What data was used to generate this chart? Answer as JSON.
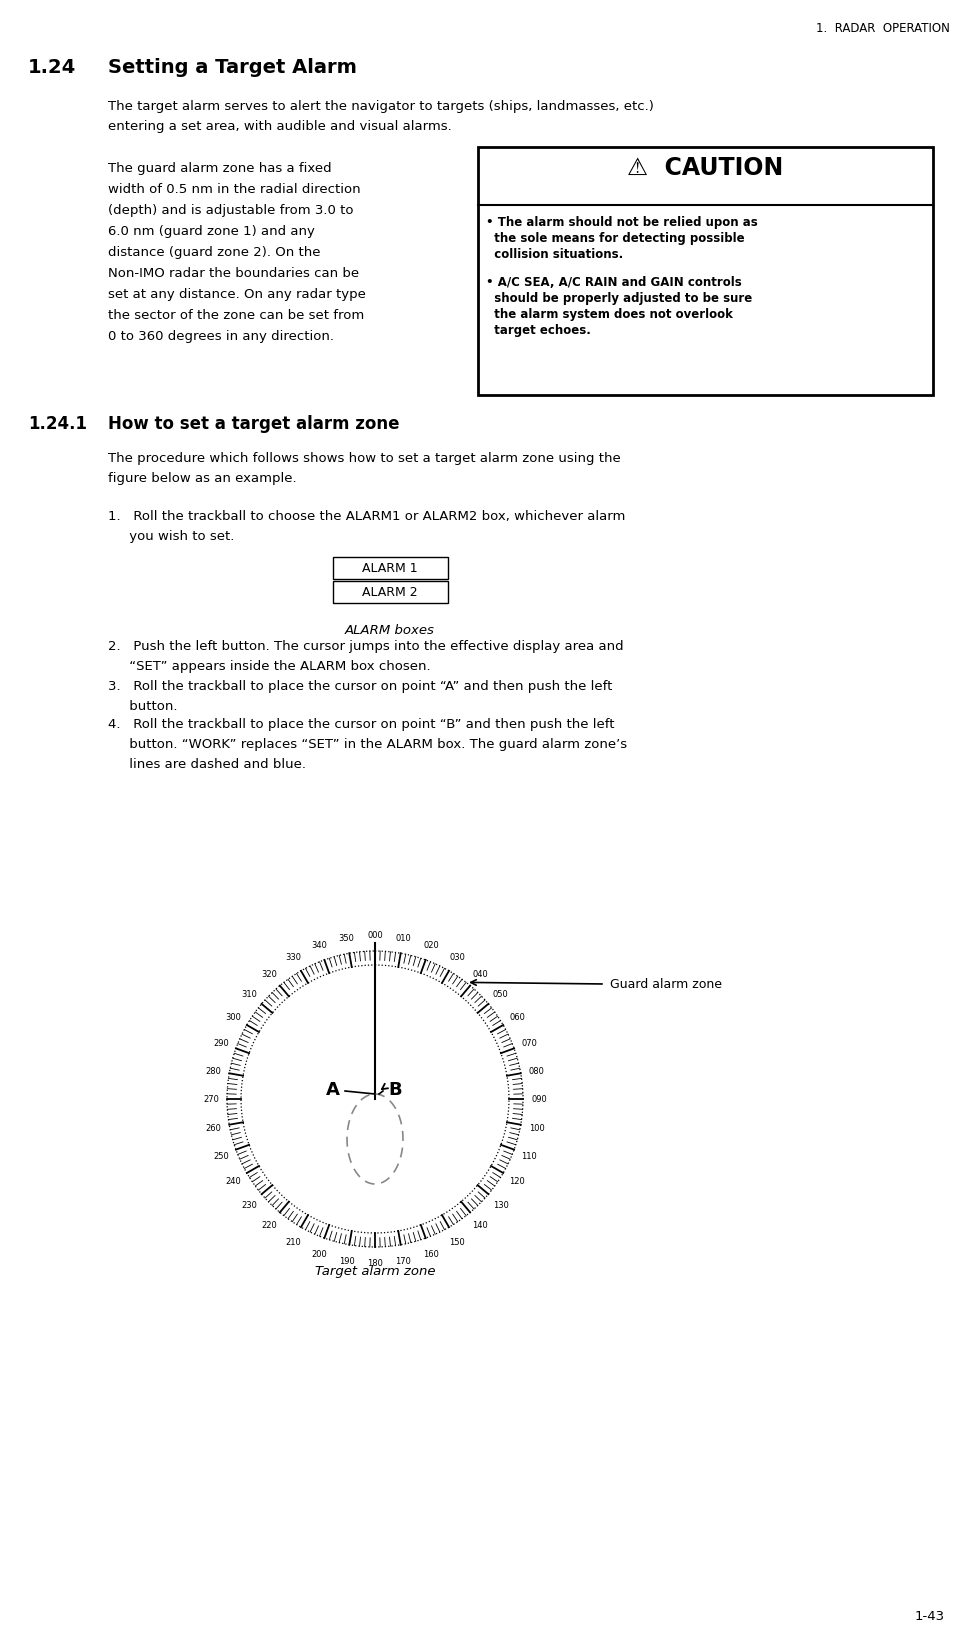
{
  "page_header": "1.  RADAR  OPERATION",
  "section_num": "1.24",
  "section_title": "Setting a Target Alarm",
  "para1_line1": "The target alarm serves to alert the navigator to targets (ships, landmasses, etc.)",
  "para1_line2": "entering a set area, with audible and visual alarms.",
  "para2_left_lines": [
    "The guard alarm zone has a fixed",
    "width of 0.5 nm in the radial direction",
    "(depth) and is adjustable from 3.0 to",
    "6.0 nm (guard zone 1) and any",
    "distance (guard zone 2). On the",
    "Non-IMO radar the boundaries can be",
    "set at any distance. On any radar type",
    "the sector of the zone can be set from",
    "0 to 360 degrees in any direction."
  ],
  "caution_header": "⚠  CAUTION",
  "caution_b1_lines": [
    "• The alarm should not be relied upon as",
    "  the sole means for detecting possible",
    "  collision situations."
  ],
  "caution_b2_lines": [
    "• A/C SEA, A/C RAIN and GAIN controls",
    "  should be properly adjusted to be sure",
    "  the alarm system does not overlook",
    "  target echoes."
  ],
  "subsection_num": "1.24.1",
  "subsection_title": "How to set a target alarm zone",
  "sub_para_line1": "The procedure which follows shows how to set a target alarm zone using the",
  "sub_para_line2": "figure below as an example.",
  "step1_line1": "1.   Roll the trackball to choose the ALARM1 or ALARM2 box, whichever alarm",
  "step1_line2": "     you wish to set.",
  "alarm1_label": "ALARM 1",
  "alarm2_label": "ALARM 2",
  "alarm_boxes_caption": "ALARM boxes",
  "step2_line1": "2.   Push the left button. The cursor jumps into the effective display area and",
  "step2_line2": "     “SET” appears inside the ALARM box chosen.",
  "step3_line1": "3.   Roll the trackball to place the cursor on point “A” and then push the left",
  "step3_line2": "     button.",
  "step4_line1": "4.   Roll the trackball to place the cursor on point “B” and then push the left",
  "step4_line2": "     button. “WORK” replaces “SET” in the ALARM box. The guard alarm zone’s",
  "step4_line3": "     lines are dashed and blue.",
  "guard_alarm_label": "Guard alarm zone",
  "target_alarm_caption": "Target alarm zone",
  "page_num": "1-43",
  "bg_color": "#ffffff",
  "text_color": "#000000",
  "degree_labels": [
    "000",
    "010",
    "020",
    "030",
    "040",
    "050",
    "060",
    "070",
    "080",
    "090",
    "100",
    "110",
    "120",
    "130",
    "140",
    "150",
    "160",
    "170",
    "180",
    "190",
    "200",
    "210",
    "220",
    "230",
    "240",
    "250",
    "260",
    "270",
    "280",
    "290",
    "300",
    "310",
    "320",
    "330",
    "340",
    "350"
  ]
}
